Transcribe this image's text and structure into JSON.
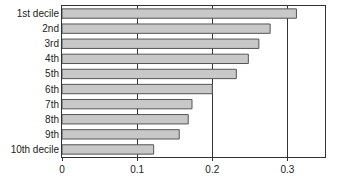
{
  "chart_data": {
    "type": "bar",
    "orientation": "horizontal",
    "categories": [
      "1st decile",
      "2nd",
      "3rd",
      "4th",
      "5th",
      "6th",
      "7th",
      "8th",
      "9th",
      "10th decile"
    ],
    "values": [
      0.312,
      0.277,
      0.262,
      0.248,
      0.232,
      0.2,
      0.173,
      0.168,
      0.156,
      0.122
    ],
    "color": "#c8c8c8",
    "xlim": [
      0,
      0.35
    ],
    "xticks": [
      0,
      0.1,
      0.2,
      0.3
    ],
    "grid": true
  }
}
